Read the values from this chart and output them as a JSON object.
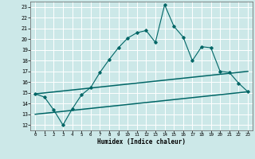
{
  "xlabel": "Humidex (Indice chaleur)",
  "ylabel": "",
  "xlim": [
    -0.5,
    23.5
  ],
  "ylim": [
    11.5,
    23.5
  ],
  "yticks": [
    12,
    13,
    14,
    15,
    16,
    17,
    18,
    19,
    20,
    21,
    22,
    23
  ],
  "xticks": [
    0,
    1,
    2,
    3,
    4,
    5,
    6,
    7,
    8,
    9,
    10,
    11,
    12,
    13,
    14,
    15,
    16,
    17,
    18,
    19,
    20,
    21,
    22,
    23
  ],
  "bg_color": "#cce8e8",
  "line_color": "#006666",
  "grid_color": "#ffffff",
  "line1_x": [
    0,
    1,
    2,
    3,
    4,
    5,
    6,
    7,
    8,
    9,
    10,
    11,
    12,
    13,
    14,
    15,
    16,
    17,
    18,
    19,
    20,
    21,
    22,
    23
  ],
  "line1_y": [
    14.9,
    14.6,
    13.4,
    12.0,
    13.5,
    14.8,
    15.5,
    16.9,
    18.1,
    19.2,
    20.1,
    20.6,
    20.8,
    19.7,
    23.2,
    21.2,
    20.2,
    18.0,
    19.3,
    19.2,
    17.0,
    16.9,
    15.9,
    15.1
  ],
  "line2_x": [
    0,
    23
  ],
  "line2_y": [
    14.9,
    17.0
  ],
  "line3_x": [
    0,
    23
  ],
  "line3_y": [
    13.0,
    15.1
  ]
}
